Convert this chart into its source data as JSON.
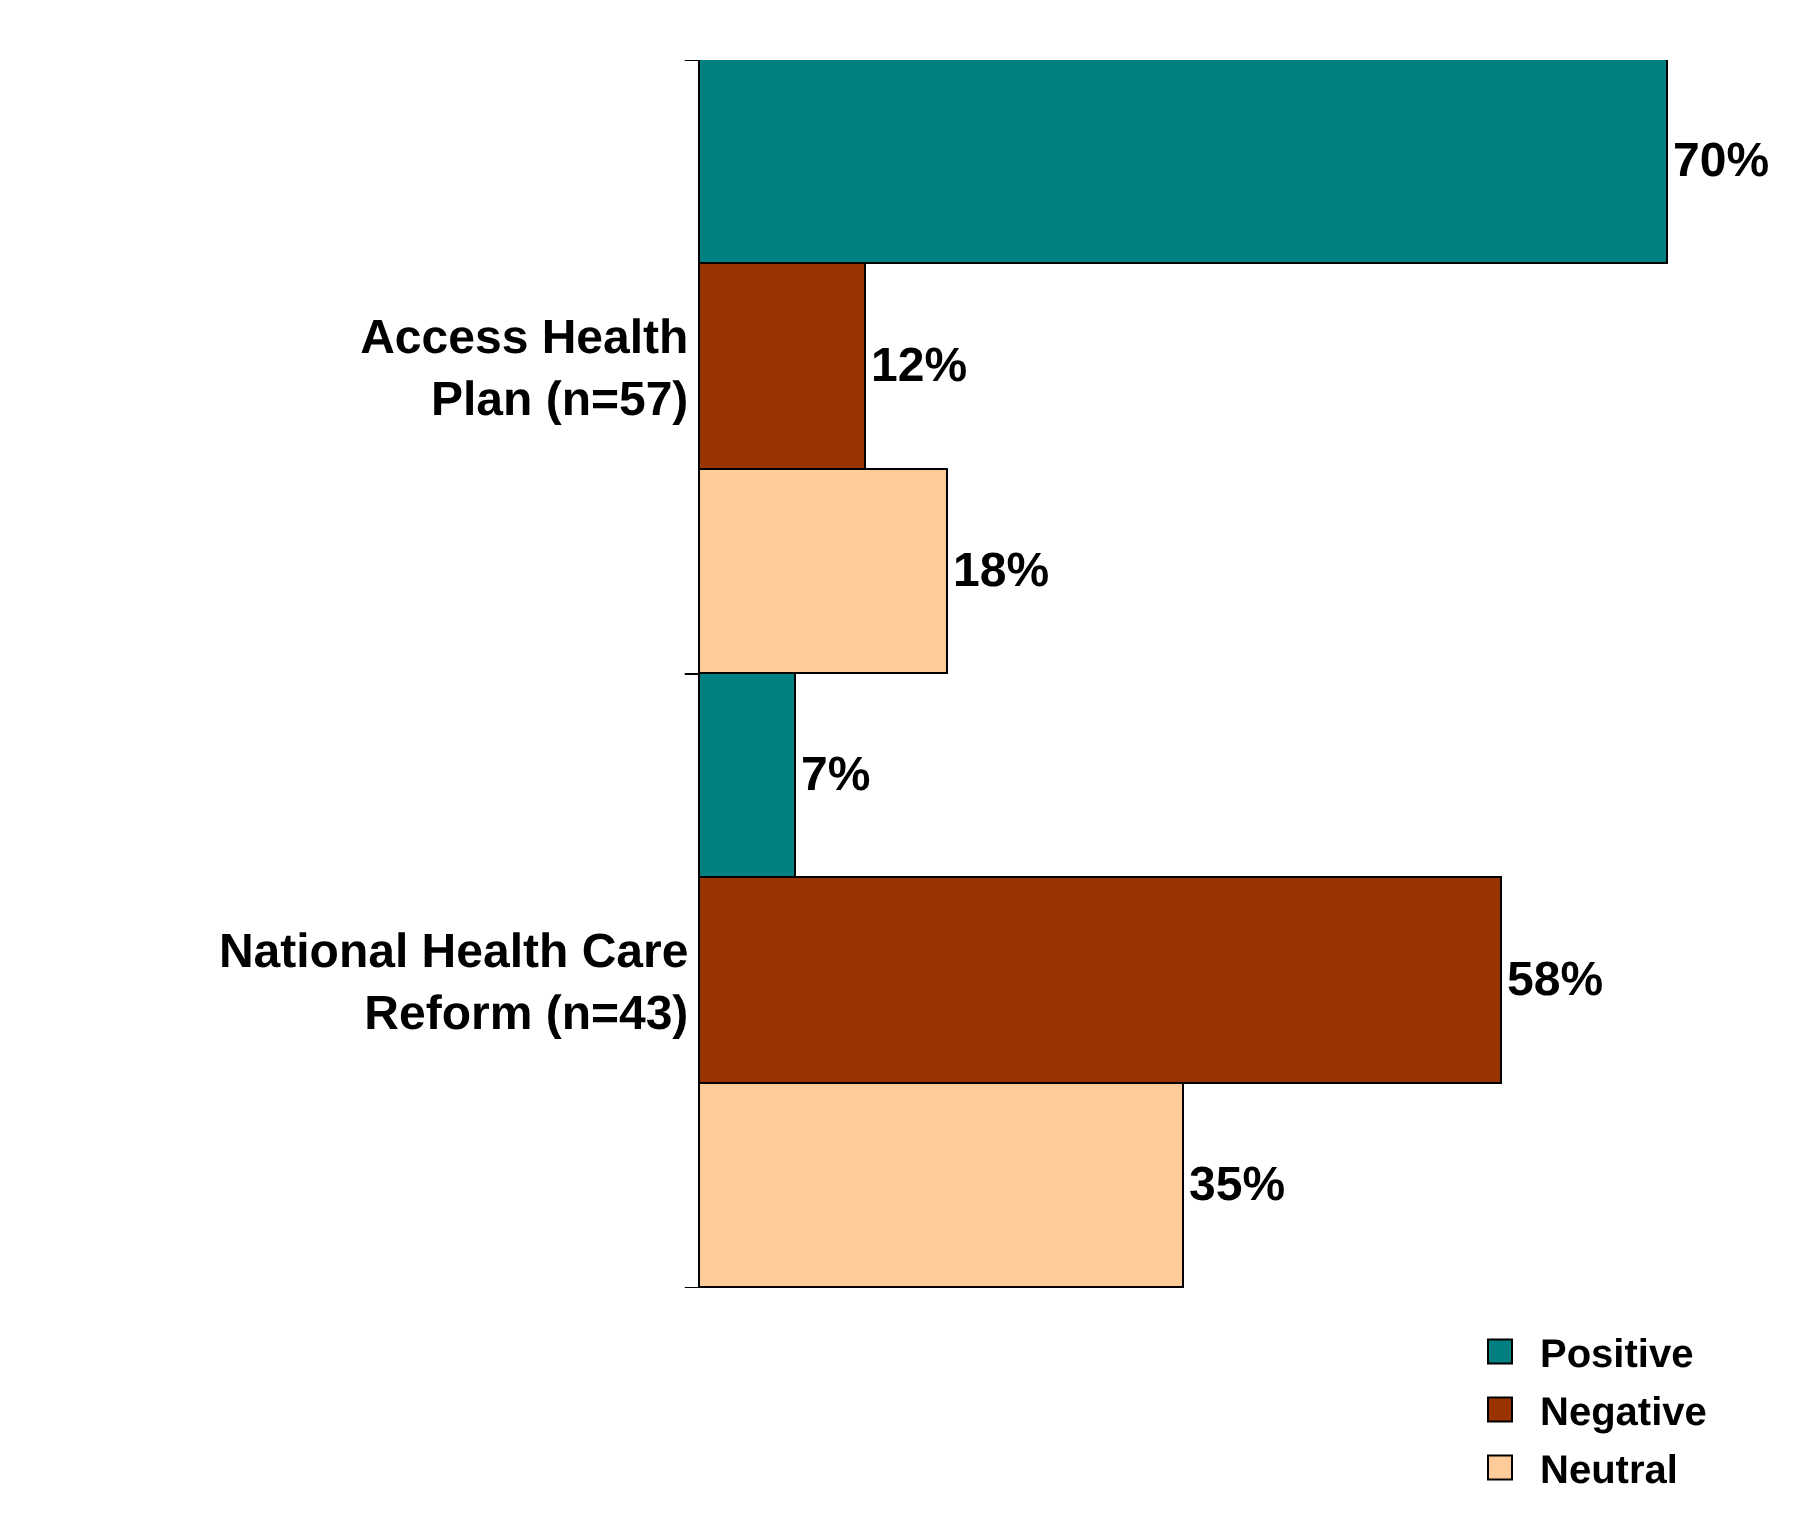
{
  "chart_data": {
    "type": "bar",
    "orientation": "horizontal",
    "categories": [
      "Access Health Plan (n=57)",
      "National Health Care Reform (n=43)"
    ],
    "series": [
      {
        "name": "Positive",
        "color": "#008080",
        "values": [
          70,
          7
        ],
        "value_labels": [
          "70%",
          "7%"
        ]
      },
      {
        "name": "Negative",
        "color": "#993300",
        "values": [
          12,
          58
        ],
        "value_labels": [
          "12%",
          "58%"
        ]
      },
      {
        "name": "Neutral",
        "color": "#ffcc99",
        "values": [
          18,
          35
        ],
        "value_labels": [
          "18%",
          "35%"
        ]
      }
    ],
    "legend": "bottom right"
  }
}
